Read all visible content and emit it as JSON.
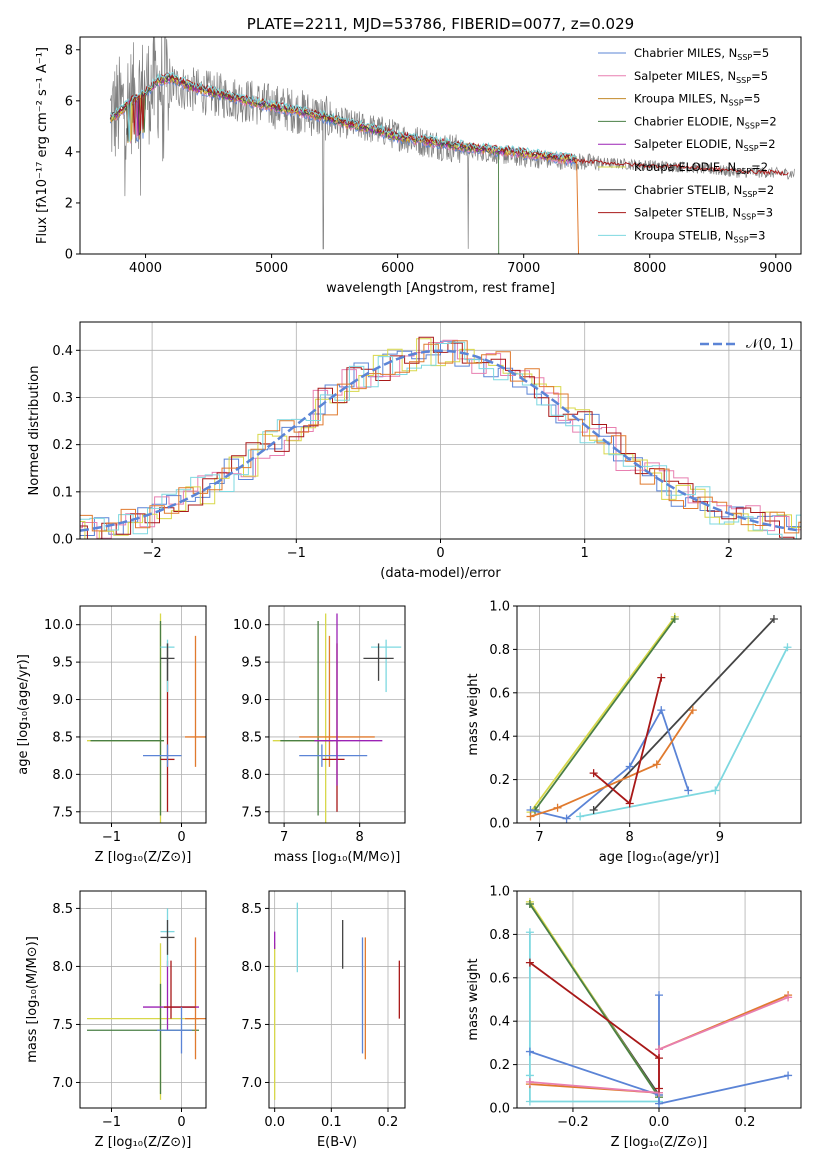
{
  "chart_data": [
    {
      "type": "line",
      "id": "spectrum",
      "title": "PLATE=2211, MJD=53786, FIBERID=0077, z=0.029",
      "xlabel": "wavelength [Angstrom, rest frame]",
      "ylabel": "Flux [fλ10⁻¹⁷ erg cm⁻² s⁻¹ A⁻¹]",
      "xlim": [
        3480,
        9200
      ],
      "ylim": [
        0,
        8.5
      ],
      "xticks": [
        4000,
        5000,
        6000,
        7000,
        8000,
        9000
      ],
      "yticks": [
        0,
        2,
        4,
        6,
        8
      ],
      "data_color": "#808080",
      "data_continuum": [
        [
          3720,
          5.4
        ],
        [
          3780,
          5.6
        ],
        [
          3850,
          5.9
        ],
        [
          3950,
          6.3
        ],
        [
          4050,
          6.5
        ],
        [
          4150,
          6.7
        ],
        [
          4300,
          6.5
        ],
        [
          4500,
          6.3
        ],
        [
          4700,
          6.1
        ],
        [
          4900,
          5.9
        ],
        [
          5100,
          5.7
        ],
        [
          5300,
          5.5
        ],
        [
          5500,
          5.2
        ],
        [
          5700,
          5.0
        ],
        [
          5900,
          4.8
        ],
        [
          6100,
          4.5
        ],
        [
          6300,
          4.3
        ],
        [
          6500,
          4.1
        ],
        [
          6700,
          3.95
        ],
        [
          6900,
          3.8
        ],
        [
          7100,
          3.7
        ],
        [
          7300,
          3.65
        ],
        [
          7500,
          3.6
        ],
        [
          7700,
          3.55
        ],
        [
          7900,
          3.5
        ],
        [
          8100,
          3.45
        ],
        [
          8300,
          3.4
        ],
        [
          8500,
          3.3
        ],
        [
          8700,
          3.2
        ],
        [
          8900,
          3.2
        ],
        [
          9100,
          3.15
        ]
      ],
      "model_continuum": [
        [
          3720,
          5.3
        ],
        [
          3800,
          5.6
        ],
        [
          3900,
          6.0
        ],
        [
          4000,
          6.3
        ],
        [
          4100,
          6.8
        ],
        [
          4200,
          6.9
        ],
        [
          4400,
          6.5
        ],
        [
          4600,
          6.25
        ],
        [
          4800,
          6.0
        ],
        [
          5000,
          5.8
        ],
        [
          5200,
          5.6
        ],
        [
          5400,
          5.4
        ],
        [
          5600,
          5.1
        ],
        [
          5800,
          4.9
        ],
        [
          6000,
          4.6
        ],
        [
          6200,
          4.45
        ],
        [
          6400,
          4.3
        ],
        [
          6600,
          4.15
        ],
        [
          6800,
          4.05
        ],
        [
          7000,
          3.95
        ],
        [
          7200,
          3.8
        ],
        [
          7400,
          3.7
        ]
      ],
      "model_red_tail": [
        [
          7400,
          3.65
        ],
        [
          7600,
          3.6
        ],
        [
          7800,
          3.52
        ],
        [
          8000,
          3.45
        ],
        [
          8200,
          3.45
        ],
        [
          8400,
          3.35
        ],
        [
          8600,
          3.3
        ],
        [
          8800,
          3.22
        ],
        [
          9000,
          3.2
        ],
        [
          9100,
          3.15
        ]
      ],
      "legend": [
        {
          "label": "Chabrier MILES, N",
          "sub": "SSP",
          "suffix": "=5",
          "color": "#5b84d6"
        },
        {
          "label": "Salpeter MILES, N",
          "sub": "SSP",
          "suffix": "=5",
          "color": "#e87fb0"
        },
        {
          "label": "Kroupa MILES, N",
          "sub": "SSP",
          "suffix": "=5",
          "color": "#c28a2a"
        },
        {
          "label": "Chabrier ELODIE, N",
          "sub": "SSP",
          "suffix": "=2",
          "color": "#4a7f44"
        },
        {
          "label": "Salpeter ELODIE, N",
          "sub": "SSP",
          "suffix": "=2",
          "color": "#9b22b5"
        },
        {
          "label": "Kroupa ELODIE, N",
          "sub": "SSP",
          "suffix": "=2",
          "color": "#d8d84a"
        },
        {
          "label": "Chabrier STELIB, N",
          "sub": "SSP",
          "suffix": "=2",
          "color": "#444444"
        },
        {
          "label": "Salpeter STELIB, N",
          "sub": "SSP",
          "suffix": "=3",
          "color": "#a81818"
        },
        {
          "label": "Kroupa STELIB, N",
          "sub": "SSP",
          "suffix": "=3",
          "color": "#7ed8e0"
        }
      ]
    },
    {
      "type": "bar",
      "id": "residuals",
      "xlabel": "(data-model)/error",
      "ylabel": "Normed distribution",
      "xlim": [
        -2.5,
        2.5
      ],
      "ylim": [
        0,
        0.46
      ],
      "xticks": [
        -2,
        -1,
        0,
        1,
        2
      ],
      "yticks": [
        0.0,
        0.1,
        0.2,
        0.3,
        0.4
      ],
      "grid": true,
      "legend": [
        {
          "label": "𝒩(0, 1)",
          "color": "#5b84d6",
          "style": "dashed"
        }
      ],
      "series_colors": [
        "#5b84d6",
        "#e87fb0",
        "#d8d84a",
        "#a81818",
        "#7ed8e0",
        "#e07a2e"
      ]
    },
    {
      "type": "scatter",
      "id": "Z-age",
      "xlabel": "Z [log₁₀(Z/Z⊙)]",
      "ylabel": "age  [log₁₀(age/yr)]",
      "xlim": [
        -1.45,
        0.35
      ],
      "ylim": [
        7.35,
        10.25
      ],
      "xticks": [
        -1,
        0
      ],
      "yticks": [
        7.5,
        8.0,
        8.5,
        9.0,
        9.5,
        10.0
      ],
      "grid": true,
      "points": [
        {
          "x": -0.3,
          "y": 8.45,
          "xerr": [
            1.05,
            0.05
          ],
          "yerr": [
            1.1,
            1.7
          ],
          "color": "#d8d84a"
        },
        {
          "x": -0.3,
          "y": 8.45,
          "xerr": [
            1.0,
            0.05
          ],
          "yerr": [
            1.0,
            1.6
          ],
          "color": "#4a7f44"
        },
        {
          "x": 0.2,
          "y": 8.5,
          "xerr": [
            0.15,
            0.15
          ],
          "yerr": [
            0.4,
            1.35
          ],
          "color": "#e07a2e"
        },
        {
          "x": -0.2,
          "y": 8.2,
          "xerr": [
            0.1,
            0.1
          ],
          "yerr": [
            0.7,
            1.55
          ],
          "color": "#a81818"
        },
        {
          "x": -0.2,
          "y": 8.25,
          "xerr": [
            0.35,
            0.2
          ],
          "yerr": [
            0.15,
            0.15
          ],
          "color": "#5b84d6"
        },
        {
          "x": -0.2,
          "y": 9.7,
          "xerr": [
            0.1,
            0.1
          ],
          "yerr": [
            0.6,
            0.1
          ],
          "color": "#7ed8e0"
        },
        {
          "x": -0.2,
          "y": 9.55,
          "xerr": [
            0.1,
            0.1
          ],
          "yerr": [
            0.3,
            0.2
          ],
          "color": "#444444"
        }
      ]
    },
    {
      "type": "scatter",
      "id": "mass-age",
      "xlabel": "mass [log₁₀(M/M⊙)]",
      "ylabel": "",
      "xlim": [
        6.8,
        8.6
      ],
      "ylim": [
        7.35,
        10.25
      ],
      "xticks": [
        7,
        8
      ],
      "yticks": [
        7.5,
        8.0,
        8.5,
        9.0,
        9.5,
        10.0
      ],
      "grid": true,
      "points": [
        {
          "x": 7.55,
          "y": 8.45,
          "xerr": [
            0.7,
            0.2
          ],
          "yerr": [
            1.1,
            1.7
          ],
          "color": "#d8d84a"
        },
        {
          "x": 7.45,
          "y": 8.45,
          "xerr": [
            0.5,
            0.2
          ],
          "yerr": [
            1.0,
            1.6
          ],
          "color": "#4a7f44"
        },
        {
          "x": 7.6,
          "y": 8.5,
          "xerr": [
            0.4,
            0.6
          ],
          "yerr": [
            0.4,
            1.35
          ],
          "color": "#e07a2e"
        },
        {
          "x": 7.7,
          "y": 8.2,
          "xerr": [
            0.2,
            0.1
          ],
          "yerr": [
            0.7,
            1.55
          ],
          "color": "#a81818"
        },
        {
          "x": 7.5,
          "y": 8.25,
          "xerr": [
            0.3,
            0.6
          ],
          "yerr": [
            0.15,
            0.15
          ],
          "color": "#5b84d6"
        },
        {
          "x": 7.7,
          "y": 8.45,
          "xerr": [
            0.3,
            0.6
          ],
          "yerr": [
            0.6,
            1.7
          ],
          "color": "#9b22b5"
        },
        {
          "x": 8.35,
          "y": 9.7,
          "xerr": [
            0.2,
            0.2
          ],
          "yerr": [
            0.6,
            0.1
          ],
          "color": "#7ed8e0"
        },
        {
          "x": 8.25,
          "y": 9.55,
          "xerr": [
            0.2,
            0.2
          ],
          "yerr": [
            0.3,
            0.2
          ],
          "color": "#444444"
        }
      ]
    },
    {
      "type": "line",
      "id": "age-weight",
      "xlabel": "age  [log₁₀(age/yr)]",
      "ylabel": "mass weight",
      "xlim": [
        6.75,
        9.9
      ],
      "ylim": [
        0,
        1
      ],
      "xticks": [
        7,
        8,
        9
      ],
      "yticks": [
        0.0,
        0.2,
        0.4,
        0.6,
        0.8,
        1.0
      ],
      "grid": true,
      "series": [
        {
          "color": "#7ed8e0",
          "points": [
            [
              7.45,
              0.03
            ],
            [
              8.95,
              0.15
            ],
            [
              9.75,
              0.81
            ]
          ]
        },
        {
          "color": "#444444",
          "points": [
            [
              7.6,
              0.06
            ],
            [
              9.6,
              0.94
            ]
          ]
        },
        {
          "color": "#d8d84a",
          "points": [
            [
              6.9,
              0.05
            ],
            [
              8.5,
              0.95
            ]
          ]
        },
        {
          "color": "#4a7f44",
          "points": [
            [
              6.95,
              0.06
            ],
            [
              8.5,
              0.94
            ]
          ]
        },
        {
          "color": "#5b84d6",
          "points": [
            [
              6.9,
              0.06
            ],
            [
              7.3,
              0.02
            ],
            [
              8.0,
              0.26
            ],
            [
              8.35,
              0.52
            ],
            [
              8.65,
              0.15
            ]
          ]
        },
        {
          "color": "#e07a2e",
          "points": [
            [
              6.9,
              0.03
            ],
            [
              7.2,
              0.07
            ],
            [
              8.3,
              0.27
            ],
            [
              8.7,
              0.52
            ]
          ]
        },
        {
          "color": "#a81818",
          "points": [
            [
              7.6,
              0.23
            ],
            [
              8.0,
              0.09
            ],
            [
              8.35,
              0.67
            ]
          ]
        }
      ]
    },
    {
      "type": "scatter",
      "id": "Z-mass",
      "xlabel": "Z [log₁₀(Z/Z⊙)]",
      "ylabel": "mass [log₁₀(M/M⊙)]",
      "xlim": [
        -1.45,
        0.35
      ],
      "ylim": [
        6.78,
        8.65
      ],
      "xticks": [
        -1,
        0
      ],
      "yticks": [
        7.0,
        7.5,
        8.0,
        8.5
      ],
      "grid": true,
      "points": [
        {
          "x": -0.3,
          "y": 7.55,
          "xerr": [
            1.05,
            0.55
          ],
          "yerr": [
            0.7,
            0.65
          ],
          "color": "#d8d84a"
        },
        {
          "x": -0.3,
          "y": 7.45,
          "xerr": [
            1.05,
            0.55
          ],
          "yerr": [
            0.55,
            0.4
          ],
          "color": "#4a7f44"
        },
        {
          "x": 0.2,
          "y": 7.55,
          "xerr": [
            0.15,
            0.15
          ],
          "yerr": [
            0.35,
            0.7
          ],
          "color": "#e07a2e"
        },
        {
          "x": -0.2,
          "y": 7.65,
          "xerr": [
            0.35,
            0.45
          ],
          "yerr": [
            0.2,
            0.4
          ],
          "color": "#9b22b5"
        },
        {
          "x": -0.15,
          "y": 7.65,
          "xerr": [
            0.1,
            0.35
          ],
          "yerr": [
            0.1,
            0.4
          ],
          "color": "#a81818"
        },
        {
          "x": -0.2,
          "y": 8.3,
          "xerr": [
            0.1,
            0.1
          ],
          "yerr": [
            0.3,
            0.2
          ],
          "color": "#7ed8e0"
        },
        {
          "x": -0.2,
          "y": 8.25,
          "xerr": [
            0.1,
            0.1
          ],
          "yerr": [
            0.15,
            0.15
          ],
          "color": "#444444"
        },
        {
          "x": 0.0,
          "y": 7.45,
          "xerr": [
            0.35,
            0.15
          ],
          "yerr": [
            0.2,
            0.2
          ],
          "color": "#5b84d6"
        }
      ]
    },
    {
      "type": "scatter",
      "id": "EBV-mass",
      "xlabel": "E(B-V)",
      "ylabel": "",
      "xlim": [
        -0.01,
        0.23
      ],
      "ylim": [
        6.78,
        8.65
      ],
      "xticks": [
        0.0,
        0.1,
        0.2
      ],
      "yticks": [
        7.0,
        7.5,
        8.0,
        8.5
      ],
      "grid": true,
      "points": [
        {
          "x": 0.0,
          "y": 7.55,
          "xerr": [
            0,
            0
          ],
          "yerr": [
            0.7,
            0.65
          ],
          "color": "#d8d84a"
        },
        {
          "x": 0.0,
          "y": 8.2,
          "xerr": [
            0,
            0
          ],
          "yerr": [
            0.05,
            0.1
          ],
          "color": "#9b22b5"
        },
        {
          "x": 0.04,
          "y": 8.25,
          "xerr": [
            0,
            0
          ],
          "yerr": [
            0.3,
            0.3
          ],
          "color": "#7ed8e0"
        },
        {
          "x": 0.12,
          "y": 8.2,
          "xerr": [
            0,
            0
          ],
          "yerr": [
            0.22,
            0.2
          ],
          "color": "#444444"
        },
        {
          "x": 0.155,
          "y": 7.75,
          "xerr": [
            0,
            0
          ],
          "yerr": [
            0.5,
            0.5
          ],
          "color": "#5b84d6"
        },
        {
          "x": 0.16,
          "y": 7.8,
          "xerr": [
            0,
            0
          ],
          "yerr": [
            0.6,
            0.45
          ],
          "color": "#e07a2e"
        },
        {
          "x": 0.22,
          "y": 7.8,
          "xerr": [
            0,
            0
          ],
          "yerr": [
            0.25,
            0.25
          ],
          "color": "#a81818"
        }
      ]
    },
    {
      "type": "line",
      "id": "Z-weight",
      "xlabel": "Z [log₁₀(Z/Z⊙)]",
      "ylabel": "mass weight",
      "xlim": [
        -0.33,
        0.33
      ],
      "ylim": [
        0,
        1
      ],
      "xticks": [
        -0.2,
        0.0,
        0.2
      ],
      "yticks": [
        0.0,
        0.2,
        0.4,
        0.6,
        0.8,
        1.0
      ],
      "grid": true,
      "series": [
        {
          "color": "#7ed8e0",
          "points": [
            [
              -0.3,
              0.81
            ],
            [
              -0.3,
              0.15
            ],
            [
              -0.3,
              0.03
            ],
            [
              0.0,
              0.03
            ]
          ]
        },
        {
          "color": "#444444",
          "points": [
            [
              -0.3,
              0.94
            ],
            [
              0.0,
              0.06
            ]
          ]
        },
        {
          "color": "#d8d84a",
          "points": [
            [
              -0.3,
              0.95
            ],
            [
              0.0,
              0.05
            ]
          ]
        },
        {
          "color": "#4a7f44",
          "points": [
            [
              -0.3,
              0.94
            ],
            [
              0.0,
              0.05
            ]
          ]
        },
        {
          "color": "#5b84d6",
          "points": [
            [
              -0.3,
              0.26
            ],
            [
              0.0,
              0.06
            ],
            [
              0.0,
              0.52
            ],
            [
              0.0,
              0.02
            ],
            [
              0.3,
              0.15
            ]
          ]
        },
        {
          "color": "#e07a2e",
          "points": [
            [
              -0.3,
              0.11
            ],
            [
              0.0,
              0.07
            ],
            [
              0.0,
              0.27
            ],
            [
              0.3,
              0.52
            ]
          ]
        },
        {
          "color": "#e87fb0",
          "points": [
            [
              -0.3,
              0.12
            ],
            [
              0.0,
              0.07
            ],
            [
              0.0,
              0.27
            ],
            [
              0.3,
              0.51
            ]
          ]
        },
        {
          "color": "#a81818",
          "points": [
            [
              -0.3,
              0.67
            ],
            [
              0.0,
              0.23
            ],
            [
              0.0,
              0.09
            ]
          ]
        }
      ]
    }
  ]
}
